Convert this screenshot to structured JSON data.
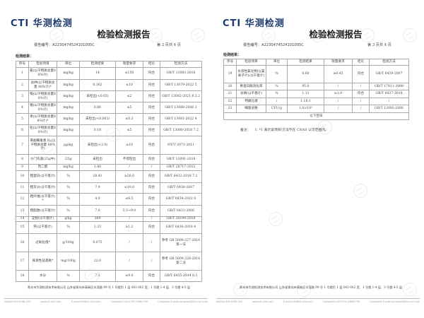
{
  "logo": {
    "latin": "CTI",
    "chinese": "华测检测"
  },
  "report_title": "检验检测报告",
  "report_no_label": "报告编号：",
  "report_no": "A2230474524101005C",
  "section_label": "检测结果：",
  "headers": [
    "序号",
    "检验项目",
    "单位",
    "检测结果",
    "限量要求",
    "结论",
    "检测方法"
  ],
  "page_left": {
    "page_info": "第 2 页共 4 页",
    "rows": [
      [
        "1",
        "氟(以干物质含量88%计)",
        "mg/kg",
        "14",
        "≤150",
        "符合",
        "GB/T 13083-2018"
      ],
      [
        "2",
        "总砷(以干物质含量 88%计)*",
        "mg/kg",
        "0.162",
        "≤10",
        "符合",
        "GB/T 13079-2022 5"
      ],
      [
        "3",
        "镉(以干物质含量88%计)",
        "mg/kg",
        "未检出(<0.05)",
        "≤2",
        "符合",
        "GB/T 13082-2021 8.3.2"
      ],
      [
        "4",
        "铬(以干物质含量88%计)",
        "mg/kg",
        "0.86",
        "≤5",
        "符合",
        "GB/T 13088-2006 3"
      ],
      [
        "5",
        "汞(以干物质含量88%计)*",
        "mg/kg",
        "未检出(<0.003)",
        "≤0.3",
        "符合",
        "GB/T 13081-2022 4"
      ],
      [
        "6",
        "铅(以干物质含量88%计)",
        "mg/kg",
        "0.18",
        "≤5",
        "符合",
        "GB/T 13080-2018 7.2"
      ],
      [
        "7",
        "黄曲霉毒素 B₁(以干物质含量 88%计)",
        "μg/kg",
        "未检出(<2.0)",
        "≤10",
        "符合",
        "NY/T 2071-2011"
      ],
      [
        "8",
        "沙门氏菌(25g中)",
        "/25g",
        "未检出",
        "不得检出",
        "符合",
        "GB/T 13091-2018"
      ],
      [
        "9",
        "丙二醛",
        "mg/kg",
        "1.40",
        "/",
        "/",
        "GB/T 28717-2012"
      ],
      [
        "10",
        "粗蛋白(以干基计)",
        "%",
        "28.41",
        "≥26.0",
        "符合",
        "GB/T 6432-2018 7.2"
      ],
      [
        "11",
        "粗灰分(以干基计)",
        "%",
        "7.9",
        "≤10.0",
        "符合",
        "GB/T 6438-2007"
      ],
      [
        "12",
        "粗纤维(以干基计)*",
        "%",
        "4.9",
        "≤6.5",
        "符合",
        "GB/T 6434-2022 6"
      ],
      [
        "13",
        "粗脂肪(以干基计)",
        "%",
        "7.0",
        "5.5~9.0",
        "符合",
        "GB/T 6433-2006"
      ],
      [
        "14",
        "淀粉(以干基计)",
        "g/kg",
        "369",
        "/",
        "/",
        "GB/T 20194-2018"
      ],
      [
        "15",
        "钙(以干基计)",
        "%",
        "1.33",
        "≥1.2",
        "符合",
        "GB/T 6436-2018 4"
      ],
      [
        "16",
        "过氧化值*",
        "g/100g",
        "0.075",
        "/",
        "/",
        "参考 GB 5009.227-2016 第一法"
      ],
      [
        "17",
        "挥发性盐基氮*",
        "mg/100g",
        "22.0",
        "/",
        "/",
        "参考 GB 5009.228-2016 第二法"
      ],
      [
        "18",
        "水分",
        "%",
        "7.1",
        "≤9.0",
        "符合",
        "GB/T 6435-2014 8.1"
      ]
    ]
  },
  "page_right": {
    "page_info": "第 3 页共 4 页",
    "rows": [
      [
        "19",
        "水溶性氯化物(以氯离子计)(以干基计)",
        "%",
        "0.60",
        "≥0.45",
        "符合",
        "GB/T 6439-2007"
      ],
      [
        "20",
        "胃蛋白酶消化率",
        "%",
        "95.0",
        "/",
        "/",
        "GB/T 17811-2008"
      ],
      [
        "21",
        "总磷(以干基计)",
        "%",
        "1.13",
        "≥1.0",
        "符合",
        "GB/T 6437-2018"
      ],
      [
        "22",
        "钙磷比值",
        "/",
        "1.18:1",
        "/",
        "/",
        "/"
      ],
      [
        "23",
        "细菌总数",
        "CFU/g",
        "1.0×10⁵",
        "/",
        "/",
        "GB/T 13093-2006"
      ]
    ],
    "blank_label": "以下空白",
    "note_label": "备注：",
    "note": "1. *1 表示该项目/方法不在 CNAS 认可范围内。"
  },
  "footer": {
    "address": "青岛市华测检测技术有限公司 山东省青岛市高新区丰茂路 99 号 1 号楼负 1 层 001-002 室、1 号楼 1-4 层、3 号楼 4-5 层",
    "contacts": [
      "Hotline:400-6788-333",
      "www.cti-cert.com",
      "E-mail:info@cti-cert.com",
      "Complaint call:0755-33681700",
      "Complaint E-mail:complaint@cti-cert.com"
    ]
  },
  "watermark": "CTI",
  "colors": {
    "logo": "#1d3a6e",
    "logo_dot": "#7cc242"
  }
}
